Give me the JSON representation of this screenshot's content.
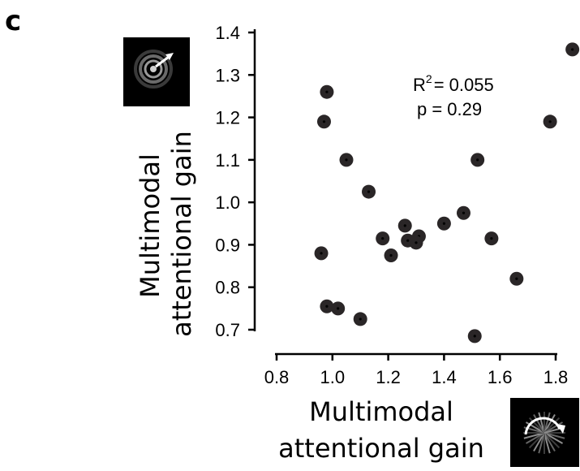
{
  "panel_label": "c",
  "icons": {
    "y_axis_stimulus": "concentric-rings-expanding-arrow-icon",
    "x_axis_stimulus": "radial-grating-rotating-arrow-icon"
  },
  "colors": {
    "marker": "#2a2627",
    "marker_center": "#000000",
    "axis": "#000000",
    "icon_background": "#000000"
  },
  "chart_data": {
    "type": "scatter",
    "xlabel_lines": [
      "Multimodal",
      "attentional gain"
    ],
    "ylabel_lines": [
      "Multimodal",
      "attentional gain"
    ],
    "xlim": [
      0.8,
      1.88
    ],
    "ylim": [
      0.67,
      1.4
    ],
    "xticks": [
      "0.8",
      "1.0",
      "1.2",
      "1.4",
      "1.6",
      "1.8"
    ],
    "xtick_values": [
      0.8,
      1.0,
      1.2,
      1.4,
      1.6,
      1.8
    ],
    "yticks": [
      "0.7",
      "0.8",
      "0.9",
      "1.0",
      "1.1",
      "1.2",
      "1.3",
      "1.4"
    ],
    "ytick_values": [
      0.7,
      0.8,
      0.9,
      1.0,
      1.1,
      1.2,
      1.3,
      1.4
    ],
    "annotation": {
      "r2_prefix": "R",
      "r2_superscript": "2",
      "r2_value": "= 0.055",
      "p_label": "p  = 0.29"
    },
    "points": [
      {
        "x": 1.86,
        "y": 1.36
      },
      {
        "x": 0.98,
        "y": 1.26
      },
      {
        "x": 0.97,
        "y": 1.19
      },
      {
        "x": 1.78,
        "y": 1.19
      },
      {
        "x": 1.05,
        "y": 1.1
      },
      {
        "x": 1.52,
        "y": 1.1
      },
      {
        "x": 1.13,
        "y": 1.025
      },
      {
        "x": 1.47,
        "y": 0.975
      },
      {
        "x": 1.4,
        "y": 0.95
      },
      {
        "x": 1.26,
        "y": 0.945
      },
      {
        "x": 1.31,
        "y": 0.92
      },
      {
        "x": 1.18,
        "y": 0.915
      },
      {
        "x": 1.57,
        "y": 0.915
      },
      {
        "x": 1.27,
        "y": 0.91
      },
      {
        "x": 1.3,
        "y": 0.905
      },
      {
        "x": 0.96,
        "y": 0.88
      },
      {
        "x": 1.21,
        "y": 0.875
      },
      {
        "x": 1.66,
        "y": 0.82
      },
      {
        "x": 0.98,
        "y": 0.755
      },
      {
        "x": 1.02,
        "y": 0.75
      },
      {
        "x": 1.1,
        "y": 0.725
      },
      {
        "x": 1.51,
        "y": 0.685
      }
    ]
  }
}
